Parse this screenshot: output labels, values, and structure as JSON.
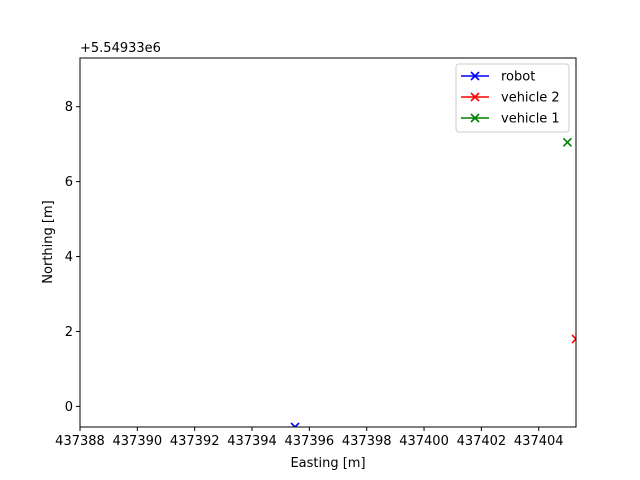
{
  "chart_data": {
    "type": "scatter",
    "title": "",
    "xlabel": "Easting [m]",
    "ylabel": "Northing [m]",
    "y_offset_label": "+5.54933e6",
    "xlim": [
      437388,
      437405.3
    ],
    "ylim": [
      -0.55,
      9.3
    ],
    "x_ticks": [
      437388,
      437390,
      437392,
      437394,
      437396,
      437398,
      437400,
      437402,
      437404
    ],
    "y_ticks": [
      0,
      2,
      4,
      6,
      8
    ],
    "grid": false,
    "legend_position": "top-right",
    "series": [
      {
        "name": "robot",
        "color": "#0000ff",
        "marker": "x",
        "points": [
          [
            437395.5,
            -0.55
          ]
        ]
      },
      {
        "name": "vehicle 2",
        "color": "#ff0000",
        "marker": "x",
        "points": [
          [
            437405.3,
            1.8
          ]
        ]
      },
      {
        "name": "vehicle 1",
        "color": "#008000",
        "marker": "x",
        "points": [
          [
            437405.0,
            7.05
          ]
        ]
      }
    ]
  }
}
